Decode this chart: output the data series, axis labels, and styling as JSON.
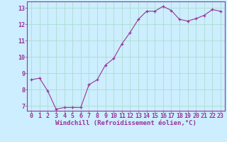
{
  "x": [
    0,
    1,
    2,
    3,
    4,
    5,
    6,
    7,
    8,
    9,
    10,
    11,
    12,
    13,
    14,
    15,
    16,
    17,
    18,
    19,
    20,
    21,
    22,
    23
  ],
  "y": [
    8.6,
    8.7,
    7.9,
    6.8,
    6.9,
    6.9,
    6.9,
    8.3,
    8.6,
    9.5,
    9.9,
    10.8,
    11.5,
    12.3,
    12.8,
    12.8,
    13.1,
    12.85,
    12.3,
    12.2,
    12.35,
    12.55,
    12.9,
    12.8
  ],
  "line_color": "#993399",
  "marker": "+",
  "bg_color": "#cceeff",
  "grid_color": "#aaddcc",
  "xlabel": "Windchill (Refroidissement éolien,°C)",
  "ylim": [
    6.7,
    13.4
  ],
  "xlim": [
    -0.5,
    23.5
  ],
  "yticks": [
    7,
    8,
    9,
    10,
    11,
    12,
    13
  ],
  "xticks": [
    0,
    1,
    2,
    3,
    4,
    5,
    6,
    7,
    8,
    9,
    10,
    11,
    12,
    13,
    14,
    15,
    16,
    17,
    18,
    19,
    20,
    21,
    22,
    23
  ],
  "tick_color": "#993399",
  "label_color": "#993399",
  "label_fontsize": 6.5,
  "tick_fontsize": 6.0,
  "spine_color": "#993399"
}
